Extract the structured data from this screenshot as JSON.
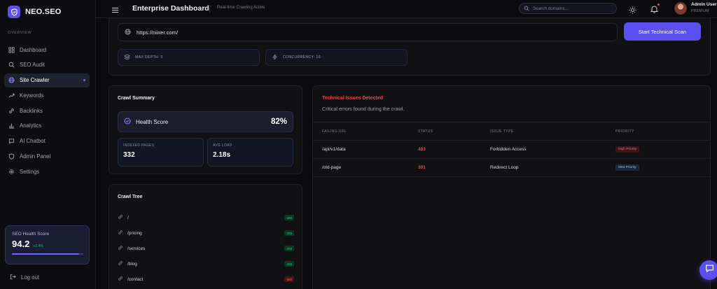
{
  "brand": {
    "name": "NEO.SEO"
  },
  "sidebar": {
    "section_label": "OVERVIEW",
    "items": [
      {
        "label": "Dashboard",
        "icon": "grid-icon"
      },
      {
        "label": "SEO Audit",
        "icon": "search-icon"
      },
      {
        "label": "Site Crawler",
        "icon": "globe-icon",
        "active": true
      },
      {
        "label": "Keywords",
        "icon": "trend-icon"
      },
      {
        "label": "Backlinks",
        "icon": "link-icon"
      },
      {
        "label": "Analytics",
        "icon": "bar-chart-icon"
      },
      {
        "label": "AI Chatbot",
        "icon": "chat-icon"
      },
      {
        "label": "Admin Panel",
        "icon": "shield-icon"
      },
      {
        "label": "Settings",
        "icon": "gear-icon"
      }
    ],
    "health_card": {
      "label": "SEO Health Score",
      "value": "94.2",
      "delta": "+2.4%",
      "progress": 0.94
    },
    "logout_label": "Log out"
  },
  "header": {
    "title": "Enterprise Dashboard",
    "subtitle": "Real-time Crawling Active",
    "search_placeholder": "Search domains...",
    "user_name": "Admin User",
    "user_plan": "PREMIUM"
  },
  "scan": {
    "url_value": "https://niixer.com/",
    "button_label": "Start Technical Scan",
    "max_depth_label": "MAX DEPTH: 5",
    "concurrency_label": "CONCURRENCY: 10"
  },
  "summary": {
    "title": "Crawl Summary",
    "health_label": "Health Score",
    "health_value": "82%",
    "indexed_label": "INDEXED PAGES",
    "indexed_value": "332",
    "load_label": "AVG LOAD",
    "load_value": "2.18s"
  },
  "tree": {
    "title": "Crawl Tree",
    "rows": [
      {
        "path": "/",
        "status": "200"
      },
      {
        "path": "/pricing",
        "status": "200"
      },
      {
        "path": "/services",
        "status": "200"
      },
      {
        "path": "/blog",
        "status": "200"
      },
      {
        "path": "/contact",
        "status": "500"
      }
    ]
  },
  "issues": {
    "title": "Technical Issues Detected",
    "subtitle": "Critical errors found during the crawl.",
    "columns": [
      "FAILING URL",
      "STATUS",
      "ISSUE TYPE",
      "PRIORITY"
    ],
    "rows": [
      {
        "url": "/api/v1/data",
        "status": "403",
        "type": "Forbidden Access",
        "priority": "High Priority",
        "level": "high"
      },
      {
        "url": "/old-page",
        "status": "301",
        "type": "Redirect Loop",
        "priority": "Med Priority",
        "level": "med"
      }
    ]
  },
  "colors": {
    "accent": "#5b4ff0",
    "error": "#f0424d",
    "success": "#34d27f"
  }
}
